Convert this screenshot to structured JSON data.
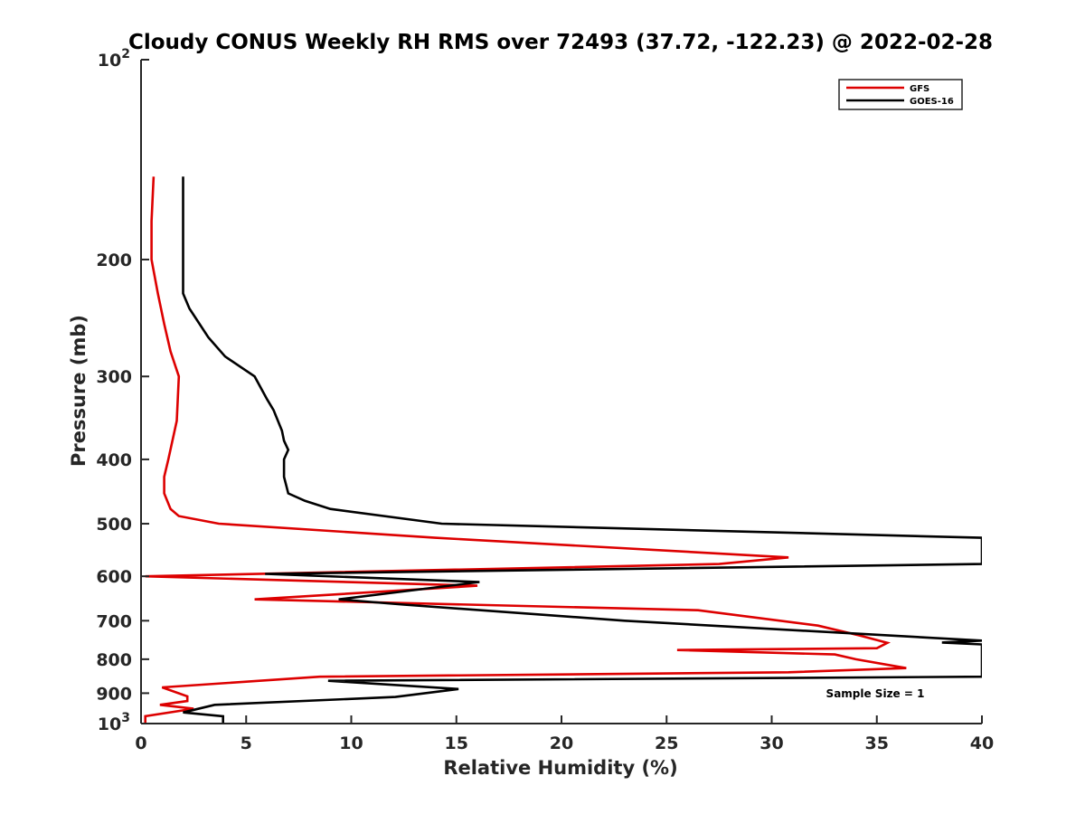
{
  "chart_data": {
    "type": "line",
    "title": "Cloudy CONUS Weekly RH RMS over 72493 (37.72, -122.23) @ 2022-02-28",
    "xlabel": "Relative Humidity (%)",
    "ylabel": "Pressure (mb)",
    "xlim": [
      0,
      40
    ],
    "ylim": [
      1000,
      100
    ],
    "y_scale": "log",
    "y_reversed": true,
    "grid": false,
    "legend_position": "top-right",
    "x_ticks": [
      0,
      5,
      10,
      15,
      20,
      25,
      30,
      35,
      40
    ],
    "y_ticks": [
      {
        "value": 100,
        "label": "10",
        "exp": "2"
      },
      {
        "value": 200,
        "label": "200",
        "exp": ""
      },
      {
        "value": 300,
        "label": "300",
        "exp": ""
      },
      {
        "value": 400,
        "label": "400",
        "exp": ""
      },
      {
        "value": 500,
        "label": "500",
        "exp": ""
      },
      {
        "value": 600,
        "label": "600",
        "exp": ""
      },
      {
        "value": 700,
        "label": "700",
        "exp": ""
      },
      {
        "value": 800,
        "label": "800",
        "exp": ""
      },
      {
        "value": 900,
        "label": "900",
        "exp": ""
      },
      {
        "value": 1000,
        "label": "10",
        "exp": "3"
      }
    ],
    "series": [
      {
        "name": "GFS",
        "color": "#dd0000",
        "points": [
          [
            0.6,
            150
          ],
          [
            0.5,
            175
          ],
          [
            0.5,
            200
          ],
          [
            0.8,
            225
          ],
          [
            1.1,
            250
          ],
          [
            1.4,
            275
          ],
          [
            1.8,
            300
          ],
          [
            1.7,
            350
          ],
          [
            1.3,
            400
          ],
          [
            1.1,
            425
          ],
          [
            1.1,
            450
          ],
          [
            1.4,
            475
          ],
          [
            1.8,
            487
          ],
          [
            3.7,
            500
          ],
          [
            14.0,
            525
          ],
          [
            30.8,
            562
          ],
          [
            27.5,
            575
          ],
          [
            0.2,
            600
          ],
          [
            16.0,
            620
          ],
          [
            5.4,
            650
          ],
          [
            26.5,
            675
          ],
          [
            32.2,
            712
          ],
          [
            34.2,
            737
          ],
          [
            35.5,
            756
          ],
          [
            35.0,
            770
          ],
          [
            25.5,
            775
          ],
          [
            33.0,
            787
          ],
          [
            34.0,
            800
          ],
          [
            36.4,
            825
          ],
          [
            30.8,
            837
          ],
          [
            8.5,
            850
          ],
          [
            1.0,
            882
          ],
          [
            2.2,
            910
          ],
          [
            2.2,
            925
          ],
          [
            0.9,
            937
          ],
          [
            2.5,
            950
          ],
          [
            0.2,
            975
          ],
          [
            0.2,
            1000
          ]
        ]
      },
      {
        "name": "GOES-16",
        "color": "#000000",
        "points": [
          [
            2.0,
            150
          ],
          [
            2.0,
            175
          ],
          [
            2.0,
            200
          ],
          [
            2.0,
            225
          ],
          [
            2.3,
            237
          ],
          [
            3.2,
            262
          ],
          [
            4.0,
            280
          ],
          [
            5.4,
            300
          ],
          [
            6.0,
            325
          ],
          [
            6.3,
            337
          ],
          [
            6.7,
            362
          ],
          [
            6.8,
            375
          ],
          [
            7.0,
            387
          ],
          [
            6.8,
            400
          ],
          [
            6.8,
            425
          ],
          [
            6.9,
            437
          ],
          [
            7.0,
            450
          ],
          [
            7.8,
            462
          ],
          [
            9.0,
            475
          ],
          [
            14.3,
            500
          ],
          [
            40.0,
            525
          ],
          [
            40.0,
            575
          ],
          [
            5.9,
            595
          ],
          [
            16.1,
            612
          ],
          [
            9.4,
            650
          ],
          [
            12.5,
            662
          ],
          [
            23.0,
            700
          ],
          [
            40.0,
            750
          ],
          [
            38.1,
            755
          ],
          [
            40.0,
            760
          ],
          [
            40.0,
            762
          ],
          [
            40.0,
            850
          ],
          [
            8.9,
            862
          ],
          [
            15.1,
            887
          ],
          [
            12.1,
            912
          ],
          [
            3.5,
            937
          ],
          [
            2.0,
            962
          ],
          [
            3.9,
            975
          ],
          [
            3.9,
            1000
          ]
        ]
      }
    ],
    "annotations": [
      {
        "text": "Sample Size = 1"
      }
    ]
  }
}
